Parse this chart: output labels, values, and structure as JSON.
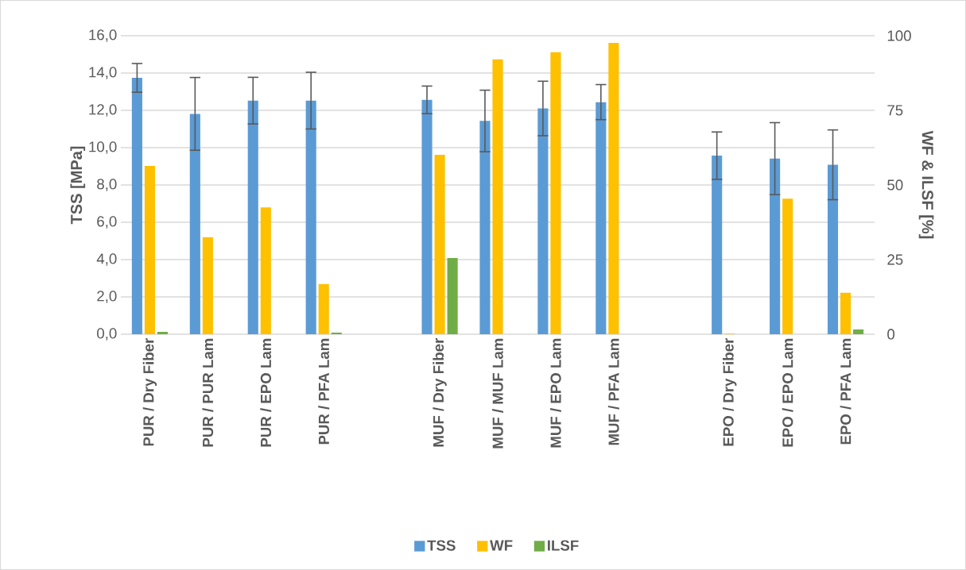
{
  "chart_data": {
    "type": "bar",
    "ylabel": "TSS [MPa]",
    "y2label": "WF & ILSF [%]",
    "categories": [
      "PUR / Dry Fiber",
      "PUR / PUR Lam",
      "PUR / EPO Lam",
      "PUR / PFA Lam",
      null,
      "MUF / Dry Fiber",
      "MUF / MUF Lam",
      "MUF / EPO Lam",
      "MUF / PFA Lam",
      null,
      "EPO / Dry Fiber",
      "EPO / EPO Lam",
      "EPO / PFA Lam"
    ],
    "series": [
      {
        "name": "TSS",
        "color": "#5b9bd5",
        "values": [
          13.74,
          11.81,
          12.52,
          12.52,
          null,
          12.56,
          11.43,
          12.1,
          12.44,
          null,
          9.57,
          9.41,
          9.08
        ],
        "errors": [
          0.77,
          1.95,
          1.25,
          1.52,
          null,
          0.74,
          1.65,
          1.46,
          0.94,
          null,
          1.27,
          1.93,
          1.87
        ]
      },
      {
        "name": "WF",
        "color": "#ffc000",
        "axis": "y2",
        "values": [
          56.4,
          32.5,
          42.5,
          16.8,
          null,
          60.1,
          92.1,
          94.5,
          97.6,
          null,
          0.2,
          45.4,
          13.9
        ]
      },
      {
        "name": "ILSF",
        "color": "#70ad47",
        "axis": "y2",
        "values": [
          0.8,
          0,
          0,
          0.5,
          null,
          25.5,
          0,
          0,
          0,
          null,
          0,
          0,
          1.6
        ]
      }
    ],
    "ylim": [
      0,
      16
    ],
    "yticks": [
      {
        "value": 0,
        "label": "0,0"
      },
      {
        "value": 2,
        "label": "2,0"
      },
      {
        "value": 4,
        "label": "4,0"
      },
      {
        "value": 6,
        "label": "6,0"
      },
      {
        "value": 8,
        "label": "8,0"
      },
      {
        "value": 10,
        "label": "10,0"
      },
      {
        "value": 12,
        "label": "12,0"
      },
      {
        "value": 14,
        "label": "14,0"
      },
      {
        "value": 16,
        "label": "16,0"
      }
    ],
    "y2lim": [
      0,
      100
    ],
    "y2ticks": [
      0,
      25,
      50,
      75,
      100
    ],
    "grid": "y",
    "legend": "bottom"
  }
}
